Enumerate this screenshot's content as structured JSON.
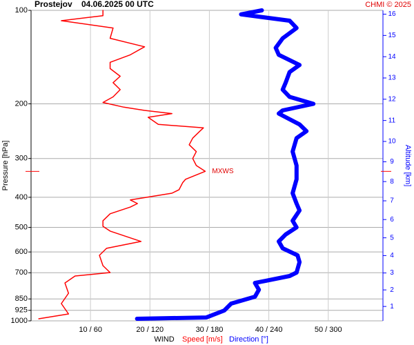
{
  "chart_data": {
    "type": "line",
    "title": "Prostejov",
    "subtitle": "04.06.2025 00 UTC",
    "credit": "CHMI © 2025",
    "xlabel": "WIND",
    "ylabel": "Pressure [hPa]",
    "y2label": "Altitude [km]",
    "log_y": true,
    "grid": true,
    "ylim": [
      1000,
      100
    ],
    "yticks": [
      100,
      200,
      300,
      400,
      500,
      600,
      700,
      850,
      925,
      1000
    ],
    "y2ticks": [
      1,
      2,
      3,
      4,
      5,
      6,
      7,
      8,
      9,
      10,
      11,
      12,
      13,
      14,
      15,
      16
    ],
    "xlim": [
      0,
      59.2
    ],
    "x2lim": [
      0,
      355.2
    ],
    "xticks": [
      {
        "value": 10,
        "label": "10 / 60"
      },
      {
        "value": 20,
        "label": "20 / 120"
      },
      {
        "value": 30,
        "label": "30 / 180"
      },
      {
        "value": 40,
        "label": "40 / 240"
      },
      {
        "value": 50,
        "label": "50 / 300"
      }
    ],
    "annotation": {
      "text": "MXWS",
      "y": 330,
      "x": 29.3
    },
    "series": [
      {
        "name": "Speed [m/s]",
        "color": "#ff0000",
        "y": [
          985,
          950,
          880,
          815,
          755,
          717,
          699,
          664,
          615,
          584,
          555,
          514,
          496,
          476,
          452,
          430,
          419,
          408,
          388,
          378,
          359,
          350,
          330,
          316,
          300,
          285,
          271,
          258,
          245,
          239,
          233,
          221,
          215,
          210,
          205,
          198,
          190,
          180,
          171,
          163,
          154,
          147,
          139,
          131,
          123,
          114,
          108,
          104,
          100
        ],
        "values": [
          1.3,
          6.3,
          5.1,
          6.3,
          5.7,
          7.4,
          13.3,
          12.1,
          11.5,
          12.7,
          18.5,
          13.3,
          12.1,
          12.1,
          13.3,
          16.7,
          17.9,
          16.7,
          23.7,
          24.9,
          25.5,
          26.0,
          29.3,
          27.8,
          27.2,
          27.8,
          26.6,
          27.2,
          28.4,
          29.0,
          21.4,
          19.7,
          23.7,
          19.1,
          15.6,
          12.1,
          13.8,
          15.0,
          13.8,
          15.0,
          13.3,
          13.3,
          16.7,
          19.1,
          13.3,
          13.8,
          5.1,
          12.1,
          12.1
        ]
      },
      {
        "name": "Direction [°]",
        "color": "#0000ff",
        "axis": "x2",
        "y": [
          985,
          975,
          926,
          880,
          836,
          794,
          755,
          717,
          699,
          647,
          615,
          584,
          555,
          527,
          500,
          476,
          441,
          419,
          388,
          350,
          316,
          285,
          258,
          245,
          233,
          215,
          210,
          200,
          190,
          180,
          171,
          158,
          150,
          139,
          132,
          123,
          114,
          108,
          103,
          100
        ],
        "values": [
          107,
          177,
          195,
          202,
          226,
          230,
          226,
          261,
          268,
          271,
          269,
          254,
          250,
          257,
          268,
          264,
          271,
          268,
          264,
          268,
          268,
          264,
          268,
          278,
          271,
          250,
          254,
          285,
          261,
          254,
          257,
          261,
          271,
          250,
          247,
          254,
          268,
          261,
          212,
          233
        ]
      }
    ]
  }
}
